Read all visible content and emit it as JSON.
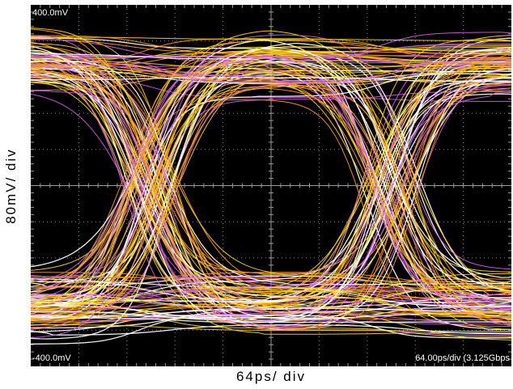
{
  "chart_data": {
    "type": "eye-diagram",
    "title": "",
    "xlabel": "64ps/ div",
    "ylabel": "80mV/ div",
    "y_top_label": "400.0mV",
    "y_bottom_label": "-400.0mV",
    "timebase_label": "64.00ps/div (3.125Gbps",
    "x_divisions": 10,
    "y_divisions": 10,
    "x_unit": "ps",
    "x_per_div": 64,
    "ylim_mV": [
      -400,
      400
    ],
    "mV_per_div": 80,
    "bit_rate_gbps": 3.125,
    "unit_interval_ps": 320,
    "high_level_mV": 300,
    "low_level_mV": -300,
    "crossing_times_ps": [
      0,
      320,
      640
    ],
    "grid": true,
    "background_color": "#000000",
    "trace_colors": [
      "#ffffff",
      "#ffd800",
      "#ff9a1a",
      "#d060e0"
    ]
  }
}
